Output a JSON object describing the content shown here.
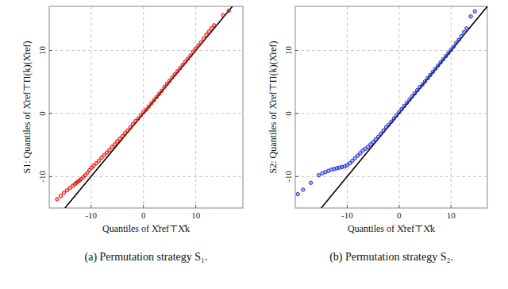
{
  "chart_data": [
    {
      "type": "scatter",
      "title": "(a) Permutation strategy S₁.",
      "x_label": "Quantiles of X̊ref⊤X̊k",
      "y_label": "S1: Quantiles of X̊ref⊤Π(k)(X̊ref)",
      "color": "#e3140f",
      "marker": "circle",
      "grid": true,
      "xlim": [
        -18,
        19
      ],
      "ylim": [
        -15,
        17
      ],
      "xticks": [
        -10,
        0,
        10
      ],
      "yticks": [
        -10,
        0,
        10
      ],
      "x": [
        -16.5,
        -15.8,
        -15.2,
        -14.6,
        -14.0,
        -13.5,
        -13.1,
        -12.8,
        -12.5,
        -12.2,
        -11.9,
        -11.5,
        -11.1,
        -10.7,
        -10.3,
        -9.9,
        -9.5,
        -9.0,
        -8.5,
        -8.0,
        -7.5,
        -7.0,
        -6.5,
        -6.0,
        -5.5,
        -5.0,
        -4.5,
        -4.0,
        -3.5,
        -3.0,
        -2.5,
        -2.0,
        -1.5,
        -1.0,
        -0.5,
        0,
        0.5,
        1,
        1.5,
        2,
        2.5,
        3,
        3.5,
        4,
        4.5,
        5,
        5.5,
        6,
        6.5,
        7,
        7.5,
        8,
        8.5,
        9,
        9.5,
        10,
        10.5,
        11,
        11.5,
        12,
        12.5,
        13.0,
        13.5,
        15.2,
        16.3
      ],
      "values": [
        -13.6,
        -13.1,
        -12.6,
        -12.2,
        -11.8,
        -11.5,
        -11.2,
        -11.0,
        -10.8,
        -10.6,
        -10.4,
        -10.1,
        -9.8,
        -9.4,
        -9.0,
        -8.6,
        -8.3,
        -7.9,
        -7.5,
        -7.0,
        -6.6,
        -6.2,
        -5.8,
        -5.3,
        -4.9,
        -4.4,
        -4.0,
        -3.6,
        -3.1,
        -2.7,
        -2.2,
        -1.7,
        -1.2,
        -0.8,
        -0.3,
        0.2,
        0.6,
        1.1,
        1.6,
        2.1,
        2.6,
        3.1,
        3.6,
        4.2,
        4.7,
        5.2,
        5.7,
        6.2,
        6.7,
        7.2,
        7.7,
        8.2,
        8.7,
        9.2,
        9.8,
        10.3,
        10.8,
        11.3,
        11.9,
        12.5,
        13.0,
        13.5,
        14.0,
        15.6,
        16.3
      ]
    },
    {
      "type": "scatter",
      "title": "(b) Permutation strategy S₂.",
      "x_label": "Quantiles of X̊ref⊤X̊k",
      "y_label": "S2: Quantiles of X̊ref⊤Π(k)(X̊ref)",
      "color": "#1f2fd8",
      "marker": "circle",
      "grid": true,
      "xlim": [
        -20,
        17
      ],
      "ylim": [
        -15,
        17
      ],
      "xticks": [
        -10,
        0,
        10
      ],
      "yticks": [
        -10,
        0,
        10
      ],
      "x": [
        -19.5,
        -18.5,
        -17.0,
        -15.5,
        -14.8,
        -14.2,
        -13.6,
        -13.0,
        -12.5,
        -12.0,
        -11.5,
        -11.0,
        -10.5,
        -10.0,
        -9.5,
        -9.0,
        -8.5,
        -8.0,
        -7.5,
        -7.0,
        -6.5,
        -6.0,
        -5.5,
        -5.0,
        -4.5,
        -4.0,
        -3.5,
        -3.0,
        -2.5,
        -2.0,
        -1.5,
        -1.0,
        -0.5,
        0,
        0.5,
        1,
        1.5,
        2,
        2.5,
        3,
        3.5,
        4,
        4.5,
        5,
        5.5,
        6,
        6.5,
        7,
        7.5,
        8,
        8.5,
        9,
        9.5,
        10,
        10.5,
        11,
        11.5,
        12,
        12.5,
        13.0,
        13.8,
        14.6
      ],
      "values": [
        -12.8,
        -12.1,
        -11.0,
        -9.8,
        -9.5,
        -9.3,
        -9.1,
        -8.9,
        -8.8,
        -8.7,
        -8.6,
        -8.5,
        -8.4,
        -8.2,
        -7.9,
        -7.5,
        -7.1,
        -6.7,
        -6.3,
        -5.9,
        -5.6,
        -5.3,
        -4.9,
        -4.5,
        -4.1,
        -3.7,
        -3.2,
        -2.7,
        -2.2,
        -1.8,
        -1.3,
        -0.8,
        -0.3,
        0.2,
        0.7,
        1.2,
        1.7,
        2.2,
        2.7,
        3.2,
        3.7,
        4.2,
        4.6,
        5.1,
        5.6,
        6.1,
        6.6,
        7.1,
        7.6,
        8.1,
        8.6,
        9.1,
        9.6,
        10.1,
        10.6,
        11.2,
        11.7,
        12.3,
        12.9,
        13.5,
        15.4,
        16.2
      ]
    }
  ]
}
